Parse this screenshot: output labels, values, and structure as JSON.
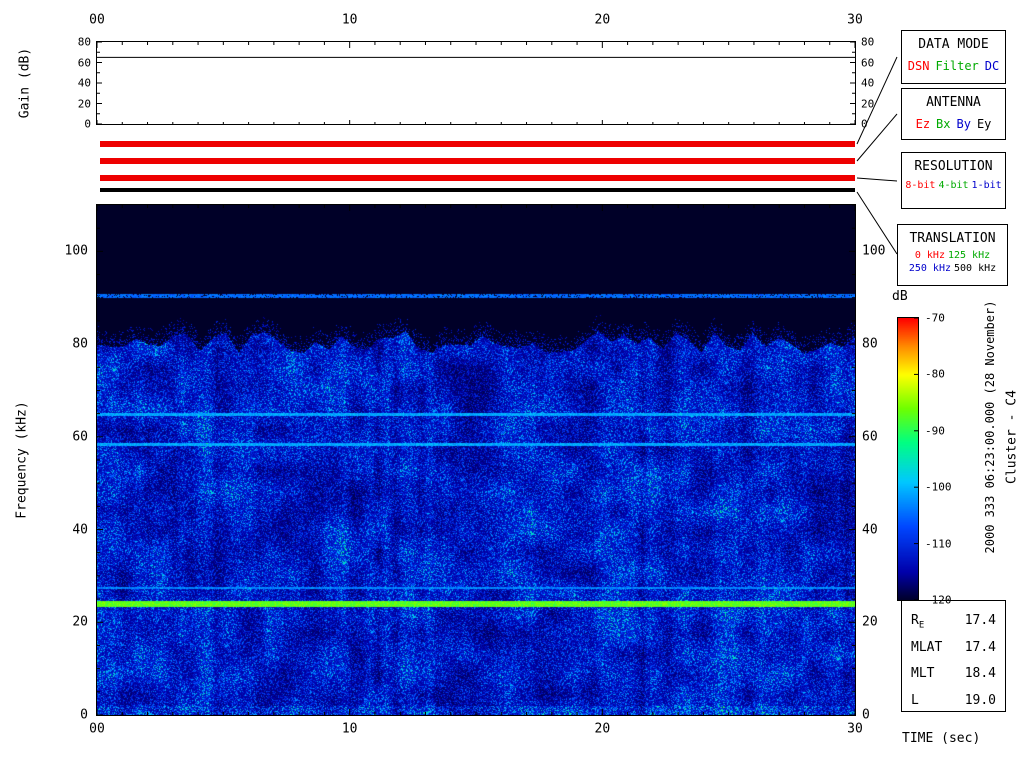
{
  "gain_panel": {
    "ylabel": "Gain (dB)",
    "gain_db": 65,
    "ylim": [
      0,
      80
    ],
    "ytick_labels": [
      "0",
      "20",
      "40",
      "60",
      "80"
    ],
    "xtick_labels": [
      "00",
      "10",
      "20",
      "30"
    ]
  },
  "time_axis": {
    "label": "TIME (sec)",
    "tick_labels": [
      "00",
      "10",
      "20",
      "30"
    ]
  },
  "status_bars": [
    {
      "name": "data-mode-bar",
      "color": "#ee0000"
    },
    {
      "name": "antenna-bar",
      "color": "#ee0000"
    },
    {
      "name": "resolution-bar",
      "color": "#ee0000"
    },
    {
      "name": "translation-bar",
      "color": "#000000"
    }
  ],
  "legend_boxes": [
    {
      "title": "DATA MODE",
      "options": [
        {
          "label": "DSN",
          "color": "#ff0000"
        },
        {
          "label": "Filter",
          "color": "#00aa00"
        },
        {
          "label": "DC",
          "color": "#0000cc"
        }
      ]
    },
    {
      "title": "ANTENNA",
      "options": [
        {
          "label": "Ez",
          "color": "#ff0000"
        },
        {
          "label": "Bx",
          "color": "#00aa00"
        },
        {
          "label": "By",
          "color": "#0000cc"
        },
        {
          "label": "Ey",
          "color": "#000000"
        }
      ]
    },
    {
      "title": "RESOLUTION",
      "options": [
        {
          "label": "8-bit",
          "color": "#ff0000"
        },
        {
          "label": "4-bit",
          "color": "#00aa00"
        },
        {
          "label": "1-bit",
          "color": "#0000cc"
        }
      ]
    },
    {
      "title": "TRANSLATION",
      "options": [
        {
          "label": "0 kHz",
          "color": "#ff0000"
        },
        {
          "label": "125 kHz",
          "color": "#00aa00"
        },
        {
          "label": "250 kHz",
          "color": "#0000cc"
        },
        {
          "label": "500 kHz",
          "color": "#000000"
        }
      ]
    }
  ],
  "ephemeris": {
    "rows": [
      {
        "label": "R",
        "sub": "E",
        "value": "17.4"
      },
      {
        "label": "MLAT",
        "sub": "",
        "value": "17.4"
      },
      {
        "label": "MLT",
        "sub": "",
        "value": "18.4"
      },
      {
        "label": "L",
        "sub": "",
        "value": "19.0"
      }
    ]
  },
  "annotations": {
    "datetime": "2000 333 06:23:00.000 (28 November)",
    "spacecraft": "Cluster - C4"
  },
  "chart_data": {
    "type": "heatmap",
    "title": "Cluster WBD wideband spectrogram",
    "xlabel": "TIME (sec)",
    "ylabel": "Frequency (kHz)",
    "xlim": [
      0,
      30
    ],
    "ylim": [
      0,
      110
    ],
    "xticks": [
      0,
      10,
      20,
      30
    ],
    "yticks": [
      0,
      20,
      40,
      60,
      80,
      100
    ],
    "ytick_labels": [
      "0",
      "20",
      "40",
      "60",
      "80",
      "100"
    ],
    "colorbar": {
      "label": "dB",
      "range": [
        -120,
        -70
      ],
      "ticks": [
        -70,
        -80,
        -90,
        -100,
        -110,
        -120
      ]
    },
    "background_db": -120,
    "broadband_noise": {
      "description": "patchy broadband hiss from 0 to ~80 kHz with ragged upper edge",
      "freq_range_khz": [
        0,
        80
      ],
      "typical_db_range": [
        -118,
        -95
      ]
    },
    "spectral_lines": [
      {
        "freq_khz": 90.5,
        "db": -105,
        "halfwidth_khz": 0.35,
        "gappy": true
      },
      {
        "freq_khz": 65.0,
        "db": -101,
        "halfwidth_khz": 0.3,
        "gappy": false
      },
      {
        "freq_khz": 58.5,
        "db": -101,
        "halfwidth_khz": 0.3,
        "gappy": false
      },
      {
        "freq_khz": 27.5,
        "db": -103,
        "halfwidth_khz": 0.3,
        "gappy": false
      },
      {
        "freq_khz": 24.0,
        "db": -87,
        "halfwidth_khz": 0.65,
        "gappy": false
      }
    ],
    "colormap_stops": [
      [
        0.0,
        [
          0,
          0,
          40
        ]
      ],
      [
        0.1,
        [
          0,
          0,
          170
        ]
      ],
      [
        0.26,
        [
          0,
          70,
          255
        ]
      ],
      [
        0.42,
        [
          0,
          200,
          255
        ]
      ],
      [
        0.56,
        [
          0,
          255,
          130
        ]
      ],
      [
        0.68,
        [
          110,
          255,
          0
        ]
      ],
      [
        0.8,
        [
          255,
          255,
          0
        ]
      ],
      [
        0.9,
        [
          255,
          140,
          0
        ]
      ],
      [
        1.0,
        [
          255,
          0,
          0
        ]
      ]
    ]
  }
}
